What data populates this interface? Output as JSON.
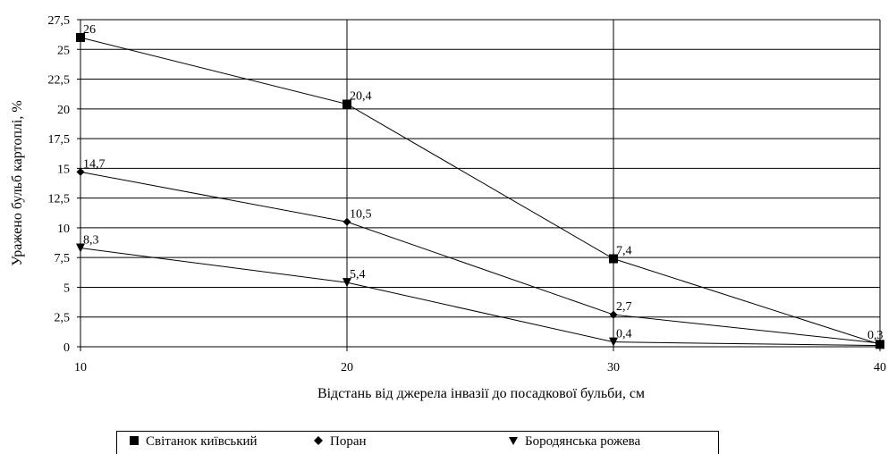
{
  "chart_data": {
    "type": "line",
    "xlabel": "Відстань від джерела інвазії до посадкової бульби, см",
    "ylabel": "Уражено бульб картоплі, %",
    "x": [
      10,
      20,
      30,
      40
    ],
    "x_ticks": [
      "10",
      "20",
      "30",
      "40"
    ],
    "ylim": [
      0,
      27.5
    ],
    "y_ticks": [
      "0",
      "2,5",
      "5",
      "7,5",
      "10",
      "12,5",
      "15",
      "17,5",
      "20",
      "22,5",
      "25",
      "27,5"
    ],
    "grid": true,
    "legend_position": "bottom",
    "series": [
      {
        "name": "Світанок київський",
        "marker": "square",
        "values": [
          26,
          20.4,
          7.4,
          0.2
        ],
        "labels": [
          "26",
          "20,4",
          "7,4",
          ""
        ]
      },
      {
        "name": "Поран",
        "marker": "diamond",
        "values": [
          14.7,
          10.5,
          2.7,
          0.3
        ],
        "labels": [
          "14,7",
          "10,5",
          "2,7",
          "0,3"
        ]
      },
      {
        "name": "Бородянська рожева",
        "marker": "triangle-down",
        "values": [
          8.3,
          5.4,
          0.4,
          0.1
        ],
        "labels": [
          "8,3",
          "5,4",
          "0,4",
          ""
        ]
      }
    ]
  }
}
